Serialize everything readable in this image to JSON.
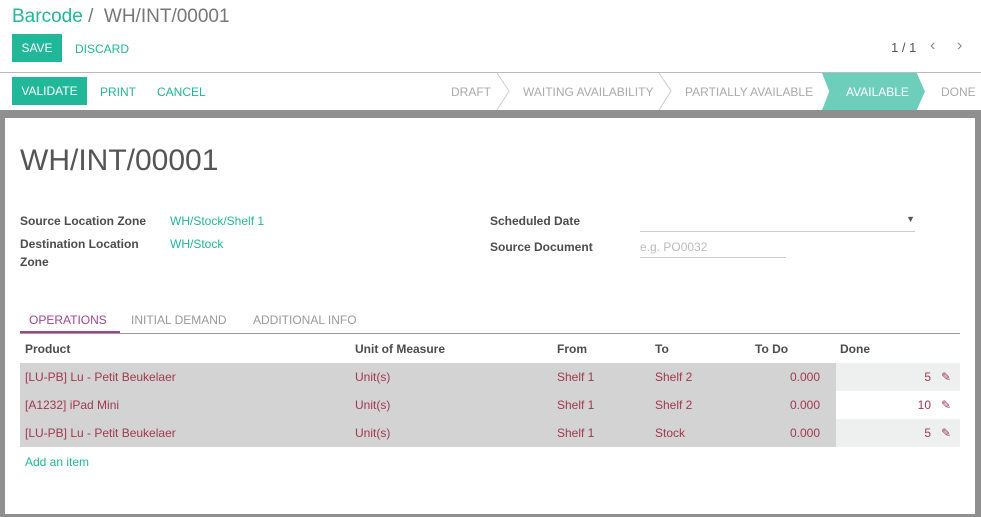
{
  "breadcrumb": {
    "parent": "Barcode",
    "separator": "/",
    "current": "WH/INT/00001"
  },
  "toolbar": {
    "save": "SAVE",
    "discard": "DISCARD",
    "pager": "1 / 1"
  },
  "actions": {
    "validate": "VALIDATE",
    "print": "PRINT",
    "cancel": "CANCEL"
  },
  "stages": [
    "DRAFT",
    "WAITING AVAILABILITY",
    "PARTIALLY AVAILABLE",
    "AVAILABLE",
    "DONE"
  ],
  "active_stage": "AVAILABLE",
  "form": {
    "title": "WH/INT/00001",
    "source_location_label": "Source Location Zone",
    "source_location": "WH/Stock/Shelf 1",
    "dest_location_label_1": "Destination Location",
    "dest_location_label_2": "Zone",
    "dest_location": "WH/Stock",
    "scheduled_date_label": "Scheduled Date",
    "scheduled_date": "",
    "source_document_label": "Source Document",
    "source_document_placeholder": "e.g. PO0032"
  },
  "tabs": [
    "OPERATIONS",
    "INITIAL DEMAND",
    "ADDITIONAL INFO"
  ],
  "table": {
    "headers": [
      "Product",
      "Unit of Measure",
      "From",
      "To",
      "To Do",
      "Done"
    ],
    "rows": [
      {
        "product": "[LU-PB] Lu - Petit Beukelaer",
        "uom": "Unit(s)",
        "from": "Shelf 1",
        "to": "Shelf 2",
        "todo": "0.000",
        "done": "5"
      },
      {
        "product": "[A1232] iPad Mini",
        "uom": "Unit(s)",
        "from": "Shelf 1",
        "to": "Shelf 2",
        "todo": "0.000",
        "done": "10"
      },
      {
        "product": "[LU-PB] Lu - Petit Beukelaer",
        "uom": "Unit(s)",
        "from": "Shelf 1",
        "to": "Stock",
        "todo": "0.000",
        "done": "5"
      }
    ],
    "add_item": "Add an item"
  },
  "colors": {
    "accent": "#21b799",
    "active_stage": "#6dcfbb",
    "tab_active": "#a24689",
    "row_text": "#a0394f"
  }
}
